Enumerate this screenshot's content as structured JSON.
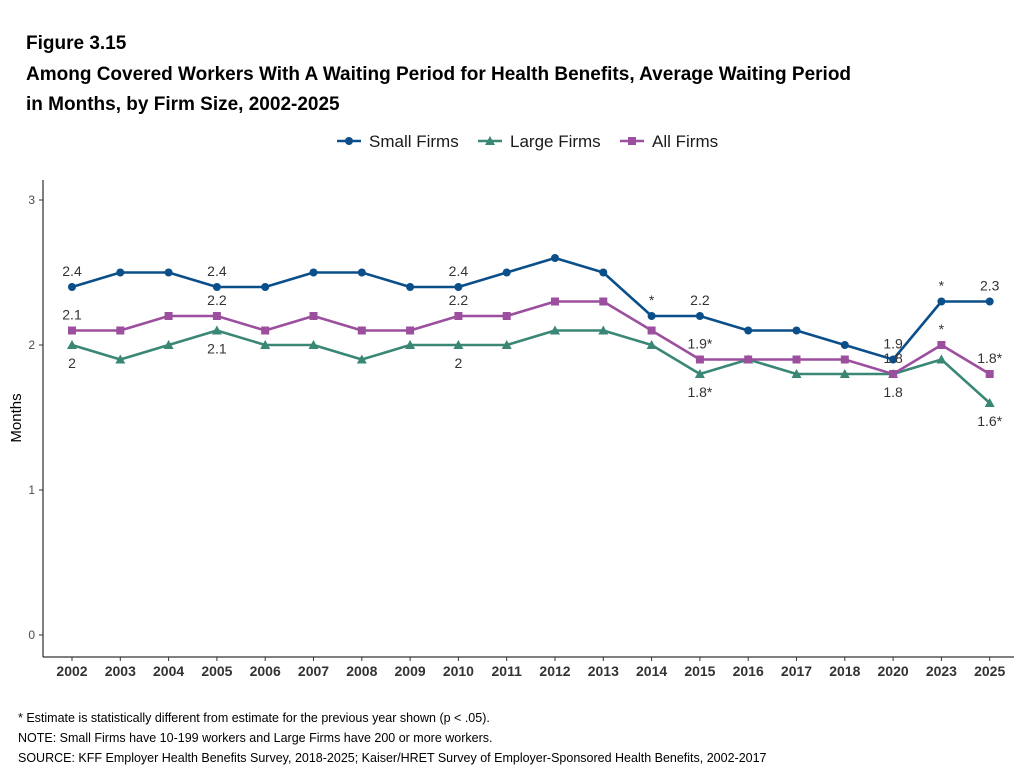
{
  "figure_label": "Figure 3.15",
  "title_line1": "Among Covered Workers With A Waiting Period for Health Benefits, Average Waiting Period",
  "title_line2": "in Months, by Firm Size, 2002-2025",
  "chart_data": {
    "type": "line",
    "categories": [
      "2002",
      "2003",
      "2004",
      "2005",
      "2006",
      "2007",
      "2008",
      "2009",
      "2010",
      "2011",
      "2012",
      "2013",
      "2014",
      "2015",
      "2016",
      "2017",
      "2018",
      "2020",
      "2023",
      "2025"
    ],
    "ylabel": "Months",
    "xlabel": "",
    "ylim": [
      -0.15,
      3.15
    ],
    "y_ticks": [
      "0",
      "1",
      "2",
      "3"
    ],
    "legend_position": "top",
    "grid": false,
    "series": [
      {
        "name": "Small Firms",
        "color": "#0b4f8a",
        "marker": "circle",
        "values": [
          2.4,
          2.5,
          2.5,
          2.4,
          2.4,
          2.5,
          2.5,
          2.4,
          2.4,
          2.5,
          2.6,
          2.5,
          2.2,
          2.2,
          2.1,
          2.1,
          2.0,
          1.9,
          2.3,
          2.3
        ],
        "labels": [
          {
            "index": 0,
            "text": "2.4",
            "pos": "above"
          },
          {
            "index": 3,
            "text": "2.4",
            "pos": "above"
          },
          {
            "index": 8,
            "text": "2.4",
            "pos": "above"
          },
          {
            "index": 12,
            "text": "*",
            "pos": "above"
          },
          {
            "index": 13,
            "text": "2.2",
            "pos": "above"
          },
          {
            "index": 17,
            "text": "1.9",
            "pos": "above"
          },
          {
            "index": 18,
            "text": "*",
            "pos": "above"
          },
          {
            "index": 19,
            "text": "2.3",
            "pos": "above"
          }
        ]
      },
      {
        "name": "Large Firms",
        "color": "#3a8776",
        "marker": "triangle",
        "values": [
          2.0,
          1.9,
          2.0,
          2.1,
          2.0,
          2.0,
          1.9,
          2.0,
          2.0,
          2.0,
          2.1,
          2.1,
          2.0,
          1.8,
          1.9,
          1.8,
          1.8,
          1.8,
          1.9,
          1.6
        ],
        "labels": [
          {
            "index": 0,
            "text": "2",
            "pos": "below"
          },
          {
            "index": 3,
            "text": "2.1",
            "pos": "below"
          },
          {
            "index": 8,
            "text": "2",
            "pos": "below"
          },
          {
            "index": 13,
            "text": "1.8*",
            "pos": "below"
          },
          {
            "index": 17,
            "text": "1.8",
            "pos": "below"
          },
          {
            "index": 19,
            "text": "1.6*",
            "pos": "below"
          }
        ]
      },
      {
        "name": "All Firms",
        "color": "#9b4f9e",
        "marker": "square",
        "values": [
          2.1,
          2.1,
          2.2,
          2.2,
          2.1,
          2.2,
          2.1,
          2.1,
          2.2,
          2.2,
          2.3,
          2.3,
          2.1,
          1.9,
          1.9,
          1.9,
          1.9,
          1.8,
          2.0,
          1.8
        ],
        "labels": [
          {
            "index": 0,
            "text": "2.1",
            "pos": "above"
          },
          {
            "index": 3,
            "text": "2.2",
            "pos": "above"
          },
          {
            "index": 8,
            "text": "2.2",
            "pos": "above"
          },
          {
            "index": 13,
            "text": "1.9*",
            "pos": "above"
          },
          {
            "index": 17,
            "text": "1.8",
            "pos": "above"
          },
          {
            "index": 18,
            "text": "*",
            "pos": "above"
          },
          {
            "index": 19,
            "text": "1.8*",
            "pos": "above"
          }
        ]
      }
    ]
  },
  "footnotes": {
    "star": "* Estimate is statistically different from estimate for the previous year shown (p < .05).",
    "note": "NOTE: Small Firms have 10-199 workers and Large Firms have 200 or more workers.",
    "source": "SOURCE: KFF Employer Health Benefits Survey, 2018-2025; Kaiser/HRET Survey of Employer-Sponsored Health Benefits, 2002-2017"
  }
}
